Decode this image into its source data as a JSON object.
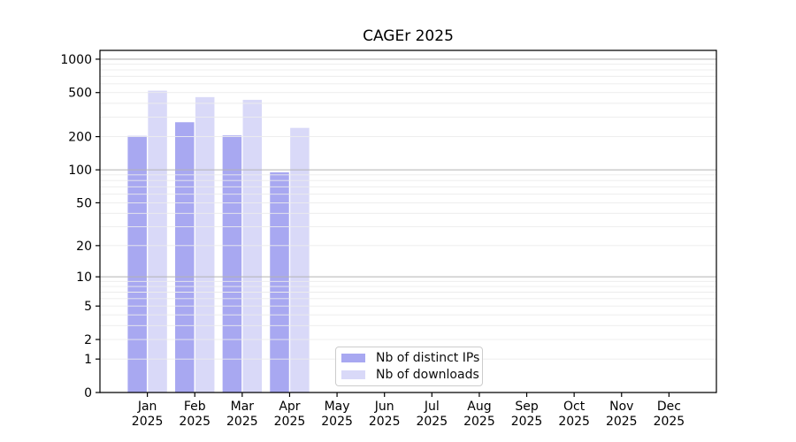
{
  "title": "CAGEr 2025",
  "chart_data": {
    "type": "bar",
    "title": "CAGEr 2025",
    "categories": [
      "Jan",
      "Feb",
      "Mar",
      "Apr",
      "May",
      "Jun",
      "Jul",
      "Aug",
      "Sep",
      "Oct",
      "Nov",
      "Dec"
    ],
    "year_label": "2025",
    "series": [
      {
        "name": "Nb of distinct IPs",
        "color": "#a8a8f1",
        "values": [
          203,
          270,
          205,
          95,
          null,
          null,
          null,
          null,
          null,
          null,
          null,
          null
        ]
      },
      {
        "name": "Nb of downloads",
        "color": "#d9d9f8",
        "values": [
          520,
          455,
          430,
          240,
          null,
          null,
          null,
          null,
          null,
          null,
          null,
          null
        ]
      }
    ],
    "xlabel": "",
    "ylabel": "",
    "yscale": "log1p",
    "yticks": [
      0,
      1,
      2,
      5,
      10,
      20,
      50,
      100,
      200,
      500,
      1000
    ],
    "ylim": [
      0,
      1200
    ],
    "grid": {
      "on": true,
      "major_ticks": [
        10,
        100,
        1000
      ],
      "major_color": "#b3b3b3",
      "minor_color": "#ececec",
      "grid_above_bars": true
    },
    "legend": {
      "position": "lower-center-inside",
      "items": [
        "Nb of distinct IPs",
        "Nb of downloads"
      ]
    }
  }
}
